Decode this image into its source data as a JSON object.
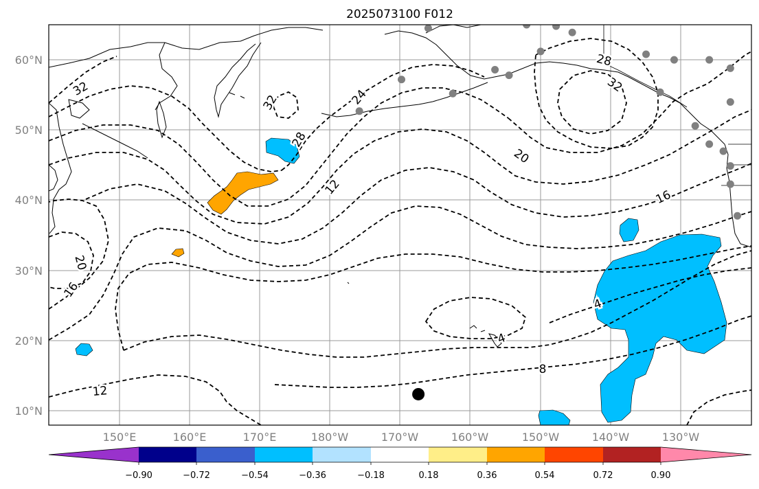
{
  "title": "2025073100 F012",
  "lat_labels": [
    "60°N",
    "50°N",
    "40°N",
    "30°N",
    "20°N",
    "10°N"
  ],
  "lon_labels": [
    "150°E",
    "160°E",
    "170°E",
    "180°W",
    "170°W",
    "160°W",
    "150°W",
    "140°W",
    "130°W"
  ],
  "contour_labels": [
    "32",
    "32",
    "32",
    "28",
    "28",
    "24",
    "20",
    "20",
    "16",
    "16",
    "12",
    "12",
    "8",
    "4",
    "4"
  ],
  "colorbar": {
    "tick_labels": [
      "−0.90",
      "−0.72",
      "−0.54",
      "−0.36",
      "−0.18",
      "0.18",
      "0.36",
      "0.54",
      "0.72",
      "0.90"
    ],
    "colors": [
      "#9932CC",
      "#00008B",
      "#3A5FCD",
      "#00BFFF",
      "#B2E2FF",
      "#FFFFFF",
      "#FFEE88",
      "#FFA500",
      "#FF4500",
      "#B22222",
      "#FF88AA"
    ]
  },
  "colors": {
    "negative_anomaly": "#00BFFF",
    "positive_anomaly": "#FFA500",
    "station_marker": "#808080",
    "center_marker": "#000000"
  },
  "markers": {
    "center": {
      "lon": -167.4,
      "lat": 12.4
    },
    "stations": [
      {
        "lon": -166.0,
        "lat": 64.5
      },
      {
        "lon": -162.5,
        "lat": 66.8
      },
      {
        "lon": -152.0,
        "lat": 65.0
      },
      {
        "lon": -147.8,
        "lat": 64.8
      },
      {
        "lon": -145.5,
        "lat": 63.9
      },
      {
        "lon": -135.0,
        "lat": 60.8
      },
      {
        "lon": -131.0,
        "lat": 60.0
      },
      {
        "lon": -126.0,
        "lat": 60.0
      },
      {
        "lon": -123.0,
        "lat": 58.8
      },
      {
        "lon": -156.5,
        "lat": 58.6
      },
      {
        "lon": -154.5,
        "lat": 57.8
      },
      {
        "lon": -150.0,
        "lat": 61.2
      },
      {
        "lon": -162.5,
        "lat": 55.2
      },
      {
        "lon": -169.8,
        "lat": 57.2
      },
      {
        "lon": -175.8,
        "lat": 52.7
      },
      {
        "lon": -133.0,
        "lat": 55.4
      },
      {
        "lon": -128.0,
        "lat": 50.6
      },
      {
        "lon": -126.0,
        "lat": 48.0
      },
      {
        "lon": -124.0,
        "lat": 47.0
      },
      {
        "lon": -123.0,
        "lat": 54.0
      },
      {
        "lon": -123.0,
        "lat": 44.9
      },
      {
        "lon": -123.0,
        "lat": 42.3
      },
      {
        "lon": -122.0,
        "lat": 37.8
      },
      {
        "lon": -119.0,
        "lat": 39.5
      }
    ]
  }
}
